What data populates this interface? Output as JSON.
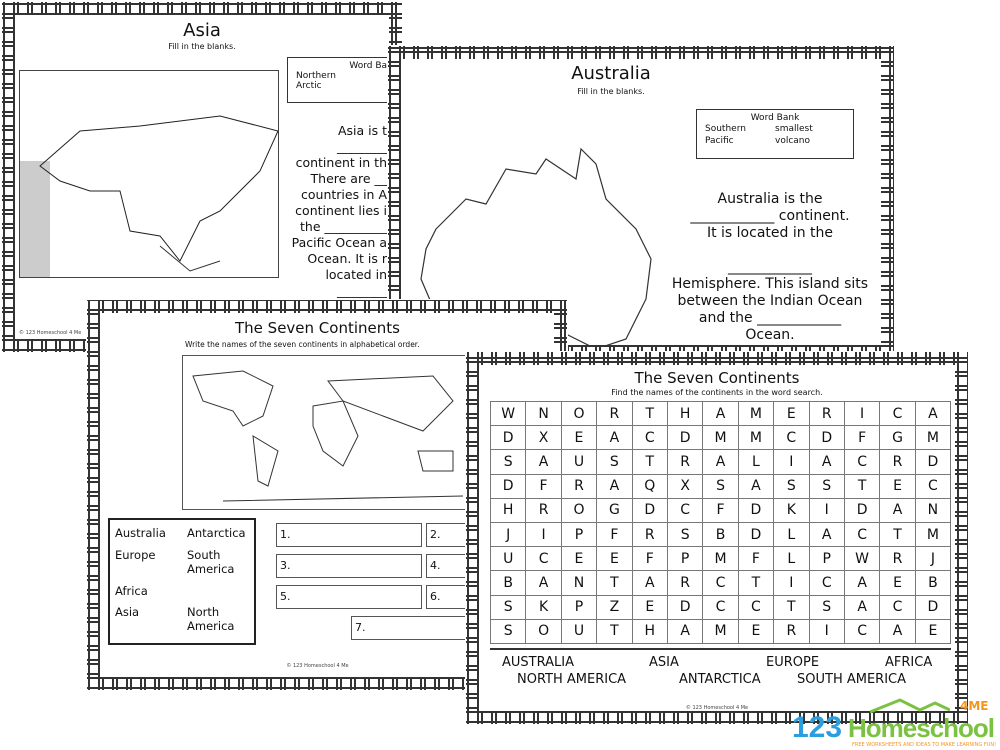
{
  "asia": {
    "title": "Asia",
    "subtitle": "Fill in the blanks.",
    "word_bank": {
      "title": "Word Bank",
      "words": [
        "Northern",
        "Arctic"
      ]
    },
    "lines": [
      "Asia is t",
      "________",
      "continent in th",
      "There are __",
      "countries in A",
      "continent lies i",
      "the __________",
      "Pacific Ocean a",
      "Ocean. It is r",
      "located in",
      "________"
    ],
    "credit": "© 123 Homeschool 4 Me"
  },
  "australia": {
    "title": "Australia",
    "subtitle": "Fill in the blanks.",
    "word_bank": {
      "title": "Word Bank",
      "words": [
        "Southern",
        "smallest",
        "Pacific",
        "volcano"
      ]
    },
    "paragraph": "Australia is the\n____________ continent.\nIt is located in the\n\n____________\nHemisphere. This island sits\nbetween the Indian Ocean\nand the ____________\nOcean.\nAustralia is the only\ncontinent in the world that"
  },
  "continents_write": {
    "title": "The Seven Continents",
    "subtitle": "Write the names of the seven continents in alphabetical order.",
    "word_box": [
      [
        "Australia",
        "Antarctica"
      ],
      [
        "Europe",
        "South\nAmerica"
      ],
      [
        "Africa",
        ""
      ],
      [
        "Asia",
        "North\nAmerica"
      ]
    ],
    "numbers": [
      "1.",
      "2.",
      "3.",
      "4.",
      "5.",
      "6.",
      "7."
    ],
    "credit": "© 123 Homeschool 4 Me"
  },
  "word_search": {
    "title": "The Seven Continents",
    "subtitle": "Find the names of the continents in the word search.",
    "grid": [
      "WNORTHAMERICA",
      "DXEACDMMCDFGM",
      "SAUSTRALIACRD",
      "DFRAQXSASSTEC",
      "HROGDCFDKIDAN",
      "JIPFRSBDLACTM",
      "UCEEFPMFLPWRJ",
      "BANTARCTICAEB",
      "SKPZEDCCTSACD",
      "SOUTHAMERICAE"
    ],
    "words_row1": [
      "AUSTRALIA",
      "ASIA",
      "EUROPE",
      "AFRICA"
    ],
    "words_row2": [
      "NORTH AMERICA",
      "ANTARCTICA",
      "SOUTH AMERICA"
    ],
    "credit": "© 123 Homeschool 4 Me"
  },
  "logo": {
    "text_a": "123",
    "text_b": "Homeschool",
    "text_c": "4ME",
    "tagline": "FREE WORKSHEETS AND IDEAS TO MAKE LEARNING FUN!",
    "colors": {
      "blue": "#2a9fe0",
      "green": "#7cc242",
      "orange": "#f7941d"
    }
  }
}
